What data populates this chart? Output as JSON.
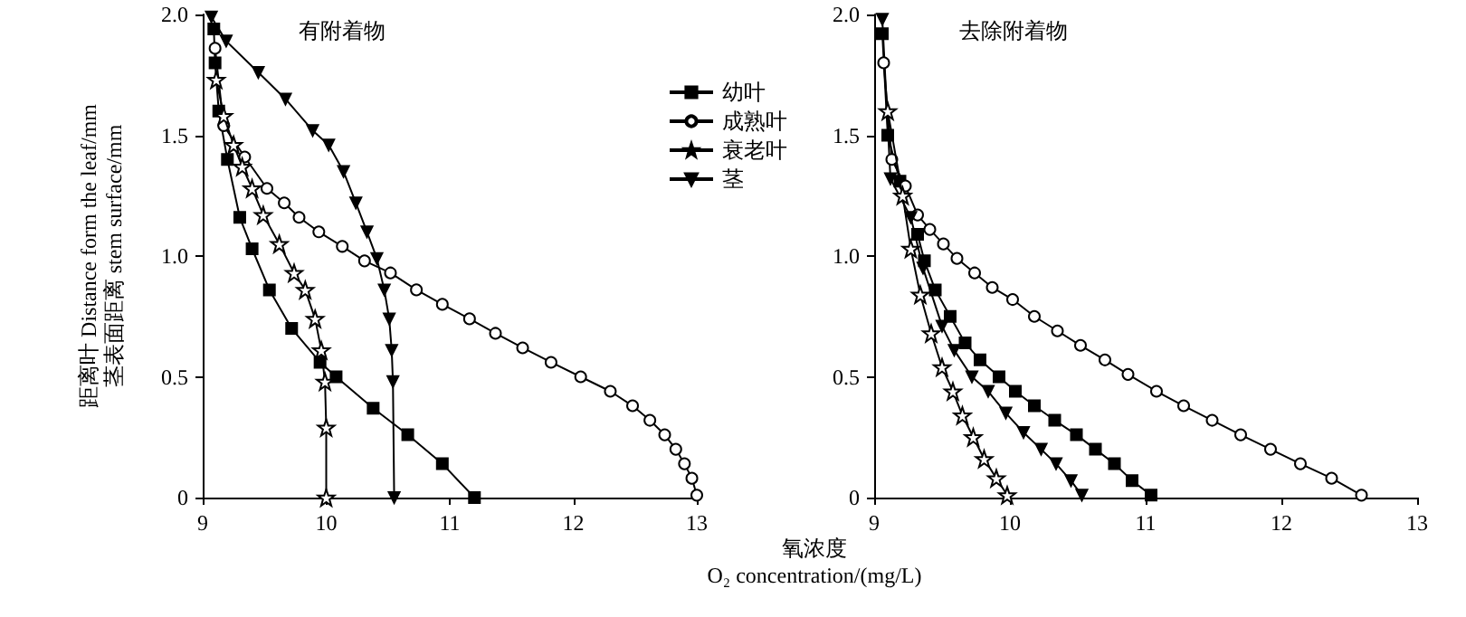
{
  "chart_data": [
    {
      "type": "line",
      "title": "有附着物",
      "ylabel": "距离叶 Distance form the leaf/mm\n茎表面距离 stem surface/mm",
      "xlabel": "氧浓度\nO₂ concentration/(mg/L)",
      "legend": "top right",
      "grid": false,
      "xlim": [
        9,
        13
      ],
      "xticks": [
        9,
        10,
        11,
        12,
        13
      ],
      "ylim": [
        0,
        2
      ],
      "yticks": [
        {
          "value": 0,
          "label": "0"
        },
        {
          "value": 0.5,
          "label": "0.5"
        },
        {
          "value": 1,
          "label": "1.0"
        },
        {
          "value": 1.5,
          "label": "1.5"
        },
        {
          "value": 2,
          "label": "2.0"
        }
      ],
      "series": [
        {
          "name": "幼叶",
          "color": "#000000",
          "marker": "square",
          "x": [
            9.09,
            9.1,
            9.13,
            9.2,
            9.3,
            9.4,
            9.54,
            9.72,
            9.95,
            10.08,
            10.38,
            10.66,
            10.94,
            11.2
          ],
          "values": [
            1.94,
            1.8,
            1.6,
            1.4,
            1.16,
            1.03,
            0.86,
            0.7,
            0.56,
            0.5,
            0.37,
            0.26,
            0.14,
            0
          ]
        },
        {
          "name": "成熟叶",
          "color": "#000000",
          "marker": "circle",
          "x": [
            9.1,
            9.17,
            9.34,
            9.52,
            9.66,
            9.78,
            9.94,
            10.13,
            10.31,
            10.52,
            10.73,
            10.94,
            11.16,
            11.37,
            11.59,
            11.82,
            12.06,
            12.3,
            12.48,
            12.62,
            12.74,
            12.83,
            12.9,
            12.96,
            13.0
          ],
          "values": [
            1.86,
            1.54,
            1.41,
            1.28,
            1.22,
            1.16,
            1.1,
            1.04,
            0.98,
            0.93,
            0.86,
            0.8,
            0.74,
            0.68,
            0.62,
            0.56,
            0.5,
            0.44,
            0.38,
            0.32,
            0.26,
            0.2,
            0.14,
            0.08,
            0.01
          ]
        },
        {
          "name": "衰老叶",
          "color": "#000000",
          "marker": "star",
          "x": [
            9.11,
            9.17,
            9.25,
            9.32,
            9.4,
            9.49,
            9.62,
            9.74,
            9.83,
            9.91,
            9.96,
            9.99,
            10.0,
            10.0
          ],
          "values": [
            1.73,
            1.58,
            1.46,
            1.37,
            1.28,
            1.17,
            1.05,
            0.93,
            0.86,
            0.74,
            0.61,
            0.48,
            0.29,
            0
          ]
        },
        {
          "name": "茎",
          "color": "#000000",
          "marker": "triangle",
          "x": [
            9.07,
            9.19,
            9.45,
            9.67,
            9.89,
            10.02,
            10.14,
            10.24,
            10.33,
            10.41,
            10.47,
            10.51,
            10.53,
            10.54,
            10.55
          ],
          "values": [
            1.99,
            1.89,
            1.76,
            1.65,
            1.52,
            1.46,
            1.35,
            1.22,
            1.1,
            0.99,
            0.86,
            0.74,
            0.61,
            0.48,
            0
          ]
        }
      ]
    },
    {
      "type": "line",
      "title": "去除附着物",
      "legend": false,
      "grid": false,
      "xlim": [
        9,
        13
      ],
      "xticks": [
        9,
        10,
        11,
        12,
        13
      ],
      "ylim": [
        0,
        2
      ],
      "yticks": [
        {
          "value": 0,
          "label": "0"
        },
        {
          "value": 0.5,
          "label": "0.5"
        },
        {
          "value": 1,
          "label": "1.0"
        },
        {
          "value": 1.5,
          "label": "1.5"
        },
        {
          "value": 2,
          "label": "2.0"
        }
      ],
      "series": [
        {
          "color": "#000000",
          "marker": "square",
          "x": [
            9.06,
            9.1,
            9.19,
            9.25,
            9.32,
            9.37,
            9.45,
            9.56,
            9.67,
            9.78,
            9.92,
            10.04,
            10.18,
            10.33,
            10.49,
            10.63,
            10.77,
            10.9,
            11.04
          ],
          "values": [
            1.92,
            1.5,
            1.31,
            null,
            1.09,
            0.98,
            0.86,
            0.75,
            0.64,
            0.57,
            0.5,
            0.44,
            0.38,
            0.32,
            0.26,
            0.2,
            0.14,
            0.07,
            0.01
          ]
        },
        {
          "color": "#000000",
          "marker": "circle",
          "x": [
            9.07,
            9.13,
            9.23,
            9.32,
            9.41,
            9.51,
            9.61,
            9.74,
            9.87,
            10.02,
            10.18,
            10.35,
            10.52,
            10.7,
            10.87,
            11.08,
            11.28,
            11.49,
            11.7,
            11.92,
            12.14,
            12.37,
            12.59
          ],
          "values": [
            1.8,
            1.4,
            1.29,
            1.17,
            1.11,
            1.05,
            0.99,
            0.93,
            0.87,
            0.82,
            0.75,
            0.69,
            0.63,
            0.57,
            0.51,
            0.44,
            0.38,
            0.32,
            0.26,
            0.2,
            0.14,
            0.08,
            0.01
          ]
        },
        {
          "color": "#000000",
          "marker": "star",
          "x": [
            9.1,
            9.21,
            9.27,
            9.34,
            9.42,
            9.5,
            9.58,
            9.65,
            9.73,
            9.81,
            9.9,
            9.98
          ],
          "values": [
            1.6,
            1.25,
            1.03,
            0.84,
            0.68,
            0.54,
            0.44,
            0.34,
            0.25,
            0.16,
            0.08,
            0.01
          ]
        },
        {
          "color": "#000000",
          "marker": "triangle",
          "x": [
            9.06,
            9.12,
            9.27,
            9.36,
            9.5,
            9.59,
            9.72,
            9.84,
            9.97,
            10.1,
            10.23,
            10.34,
            10.45,
            10.53
          ],
          "values": [
            1.98,
            1.32,
            1.16,
            0.95,
            0.71,
            0.61,
            0.5,
            0.44,
            0.35,
            0.27,
            0.2,
            0.14,
            0.07,
            0.01
          ]
        }
      ]
    }
  ]
}
